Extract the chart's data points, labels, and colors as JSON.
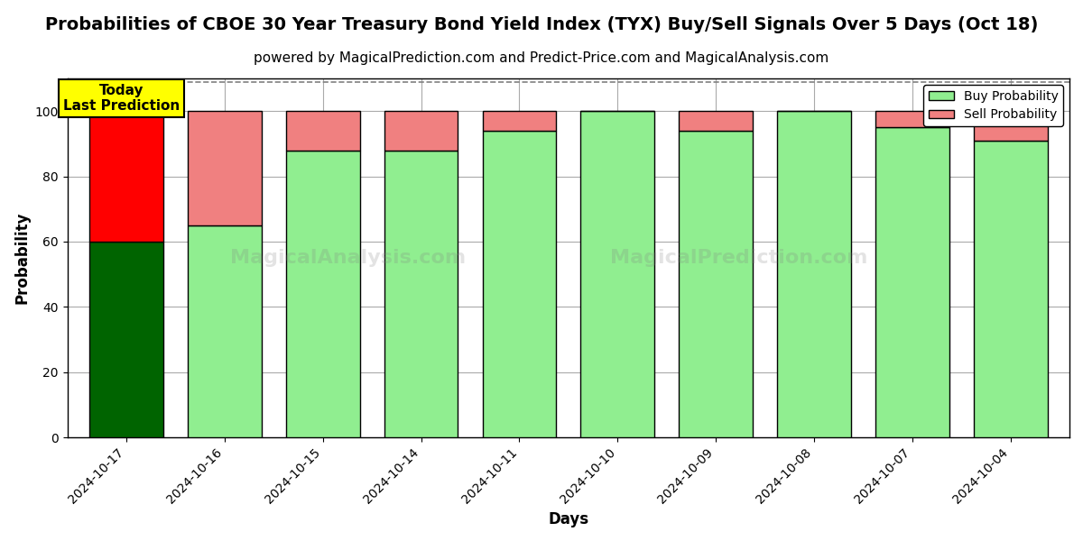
{
  "title": "Probabilities of CBOE 30 Year Treasury Bond Yield Index (TYX) Buy/Sell Signals Over 5 Days (Oct 18)",
  "subtitle": "powered by MagicalPrediction.com and Predict-Price.com and MagicalAnalysis.com",
  "xlabel": "Days",
  "ylabel": "Probability",
  "categories": [
    "2024-10-17",
    "2024-10-16",
    "2024-10-15",
    "2024-10-14",
    "2024-10-11",
    "2024-10-10",
    "2024-10-09",
    "2024-10-08",
    "2024-10-07",
    "2024-10-04"
  ],
  "buy_values": [
    60,
    65,
    88,
    88,
    94,
    100,
    94,
    100,
    95,
    91
  ],
  "sell_values": [
    40,
    35,
    12,
    12,
    6,
    0,
    6,
    0,
    5,
    9
  ],
  "buy_colors": [
    "#006400",
    "#90EE90",
    "#90EE90",
    "#90EE90",
    "#90EE90",
    "#90EE90",
    "#90EE90",
    "#90EE90",
    "#90EE90",
    "#90EE90"
  ],
  "sell_colors": [
    "#FF0000",
    "#F08080",
    "#F08080",
    "#F08080",
    "#F08080",
    "#F08080",
    "#F08080",
    "#F08080",
    "#F08080",
    "#F08080"
  ],
  "legend_buy_color": "#90EE90",
  "legend_sell_color": "#F08080",
  "ylim": [
    0,
    110
  ],
  "dashed_line_y": 109,
  "annotation_text": "Today\nLast Prediction",
  "annotation_bg": "#FFFF00",
  "background_color": "#FFFFFF",
  "grid_color": "#AAAAAA",
  "bar_edge_color": "#000000",
  "title_fontsize": 14,
  "subtitle_fontsize": 11,
  "axis_label_fontsize": 12,
  "tick_fontsize": 10,
  "ylim_ticks": [
    0,
    20,
    40,
    60,
    80,
    100
  ],
  "bar_width": 0.75
}
